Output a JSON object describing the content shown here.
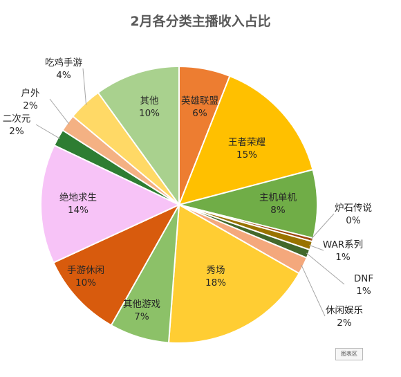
{
  "chart_data": {
    "type": "pie",
    "title": "2月各分类主播收入占比",
    "slices": [
      {
        "name": "英雄联盟",
        "value": 6,
        "label": "6%",
        "color": "#ED7D31"
      },
      {
        "name": "王者荣耀",
        "value": 15,
        "label": "15%",
        "color": "#FFC000"
      },
      {
        "name": "主机单机",
        "value": 8,
        "label": "8%",
        "color": "#70AD47"
      },
      {
        "name": "炉石传说",
        "value": 0.4,
        "label": "0%",
        "color": "#9E480E"
      },
      {
        "name": "WAR系列",
        "value": 1,
        "label": "1%",
        "color": "#997300"
      },
      {
        "name": "DNF",
        "value": 1,
        "label": "1%",
        "color": "#43682B"
      },
      {
        "name": "休闲娱乐",
        "value": 2,
        "label": "2%",
        "color": "#F4A87C"
      },
      {
        "name": "秀场",
        "value": 18,
        "label": "18%",
        "color": "#FFCD33"
      },
      {
        "name": "其他游戏",
        "value": 7,
        "label": "7%",
        "color": "#8CC168"
      },
      {
        "name": "手游休闲",
        "value": 10,
        "label": "10%",
        "color": "#D85B0D"
      },
      {
        "name": "绝地求生",
        "value": 14,
        "label": "14%",
        "color": "#F7C3F7"
      },
      {
        "name": "二次元",
        "value": 2,
        "label": "2%",
        "color": "#2E7D32"
      },
      {
        "name": "户外",
        "value": 2,
        "label": "2%",
        "color": "#F4B183"
      },
      {
        "name": "吃鸡手游",
        "value": 4,
        "label": "4%",
        "color": "#FFD966"
      },
      {
        "name": "其他",
        "value": 10,
        "label": "10%",
        "color": "#A9D18E"
      }
    ],
    "legend": "none"
  },
  "watermark": "图表区"
}
